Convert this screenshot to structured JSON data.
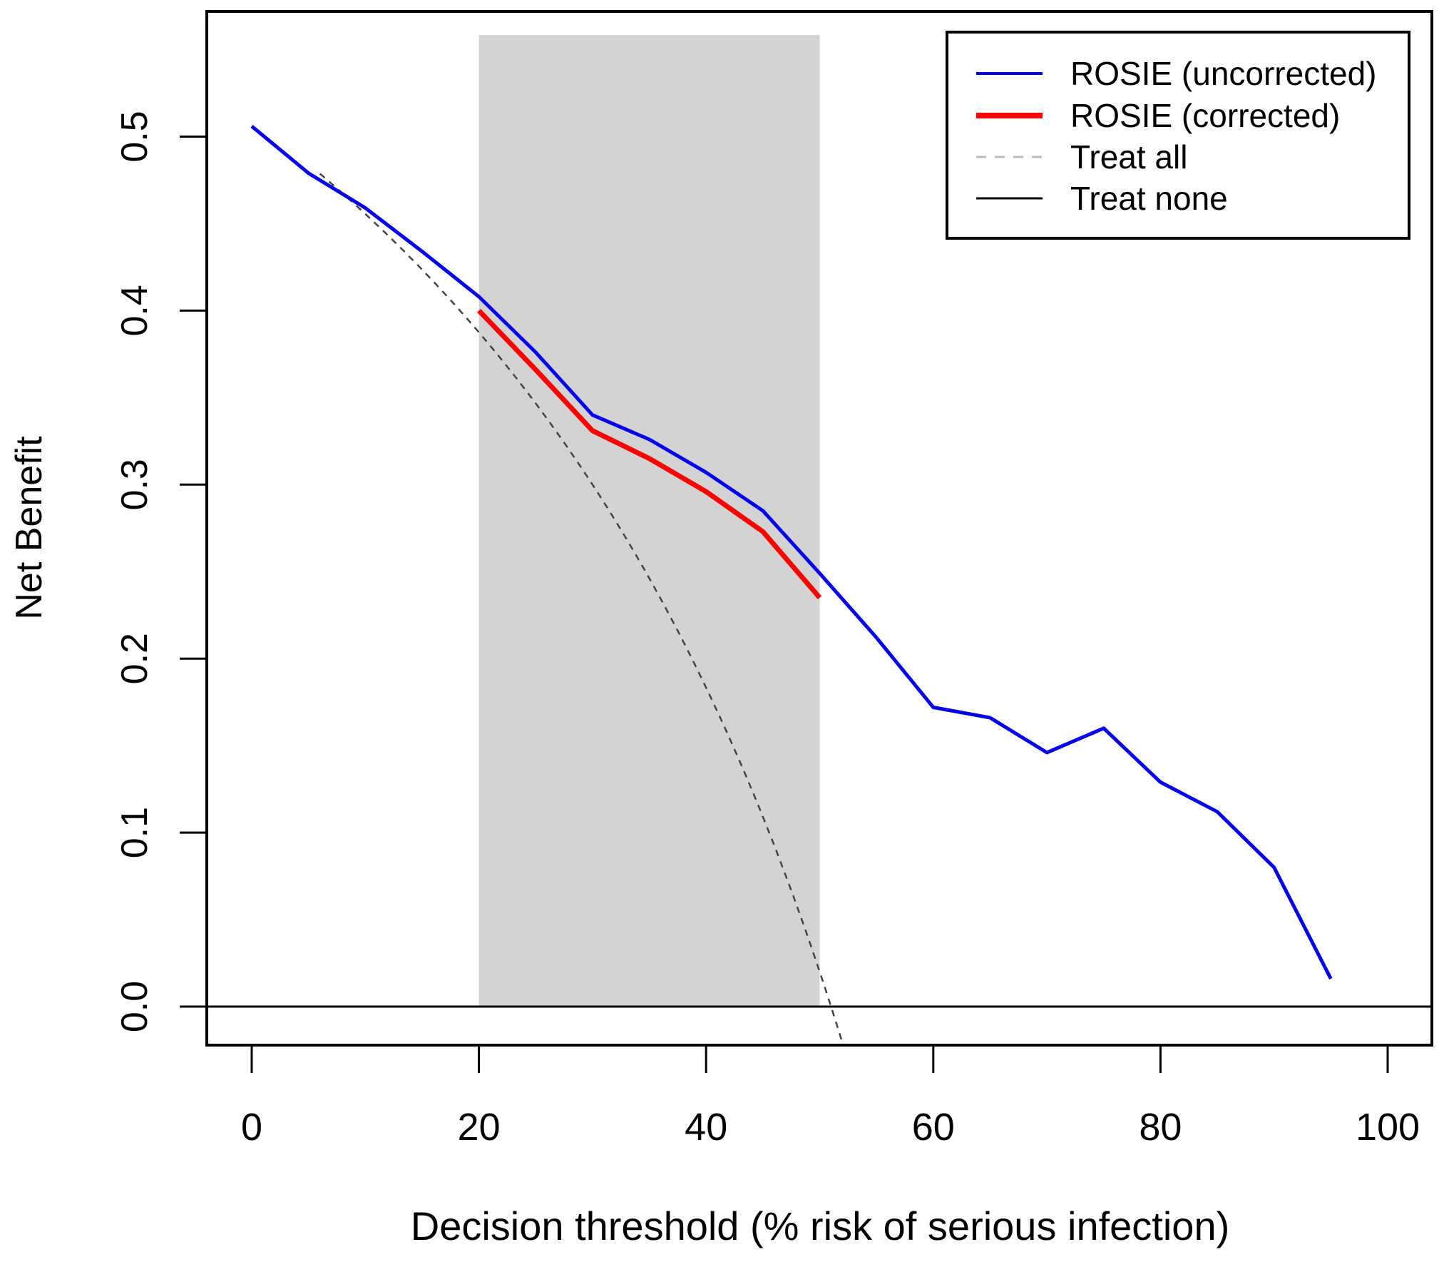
{
  "chart_data": {
    "type": "line",
    "title": "",
    "xlabel": "Decision threshold (% risk of serious infection)",
    "ylabel": "Net Benefit",
    "xlim": [
      0,
      100
    ],
    "ylim": [
      -0.022,
      0.572
    ],
    "xticks": [
      "0",
      "20",
      "40",
      "60",
      "80",
      "100"
    ],
    "xtick_values": [
      0,
      20,
      40,
      60,
      80,
      100
    ],
    "yticks": [
      "0.0",
      "0.1",
      "0.2",
      "0.3",
      "0.4",
      "0.5"
    ],
    "ytick_values": [
      0,
      0.1,
      0.2,
      0.3,
      0.4,
      0.5
    ],
    "grid": false,
    "legend_position": "top-right",
    "shaded_region": {
      "x": [
        20,
        50
      ],
      "color": "#d3d3d3"
    },
    "series": [
      {
        "name": "ROSIE (uncorrected)",
        "color": "#0000ee",
        "style": "solid",
        "x": [
          0,
          5,
          10,
          15,
          20,
          25,
          30,
          35,
          40,
          45,
          50,
          55,
          60,
          65,
          70,
          75,
          80,
          85,
          90,
          95
        ],
        "values": [
          0.506,
          0.479,
          0.459,
          0.434,
          0.408,
          0.376,
          0.34,
          0.326,
          0.307,
          0.285,
          0.249,
          0.212,
          0.172,
          0.166,
          0.146,
          0.16,
          0.129,
          0.112,
          0.08,
          0.016
        ]
      },
      {
        "name": "ROSIE (corrected)",
        "color": "#ff0000",
        "style": "solid-thick",
        "x": [
          20,
          25,
          30,
          35,
          40,
          45,
          50
        ],
        "values": [
          0.4,
          0.366,
          0.331,
          0.315,
          0.296,
          0.273,
          0.235
        ]
      },
      {
        "name": "Treat all",
        "color": "#444444",
        "legend_color": "#bbbbbb",
        "style": "dashed",
        "prevalence": 0.51,
        "x_range": [
          6,
          52
        ]
      },
      {
        "name": "Treat none",
        "color": "#000000",
        "style": "solid",
        "x": [
          0,
          100
        ],
        "values": [
          0,
          0
        ]
      }
    ]
  }
}
